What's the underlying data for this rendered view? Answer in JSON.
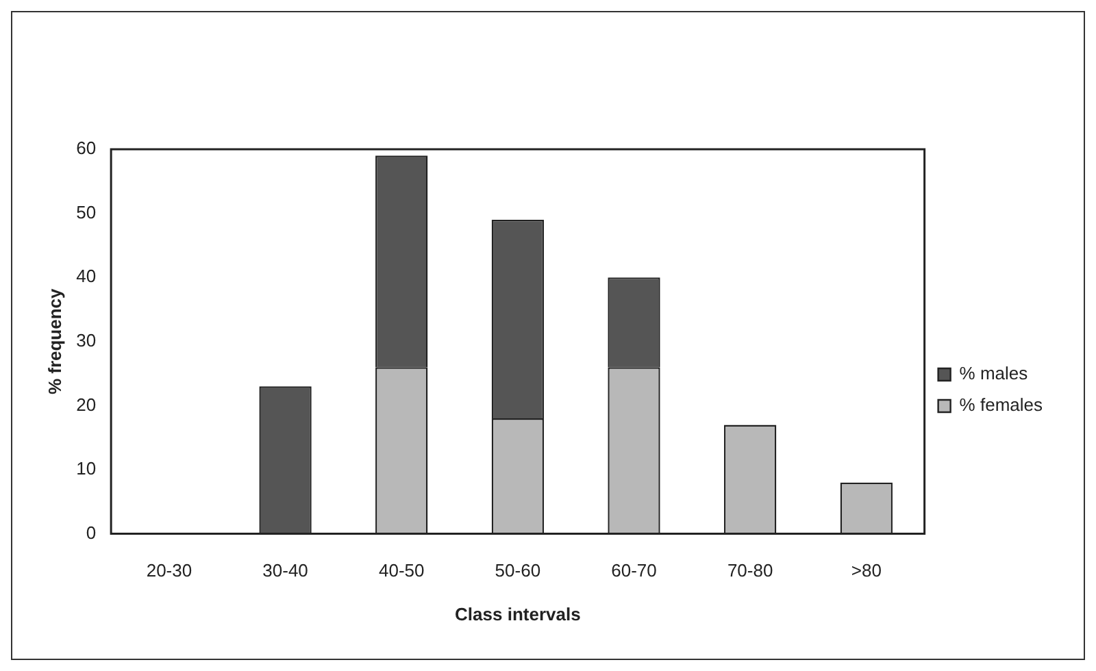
{
  "chart_data": {
    "type": "bar",
    "xlabel": "Class intervals",
    "ylabel": "% frequency",
    "categories": [
      "20-30",
      "30-40",
      "40-50",
      "50-60",
      "60-70",
      "70-80",
      ">80"
    ],
    "stacked": true,
    "legend": "right",
    "grid": false,
    "ylim": [
      0,
      60
    ],
    "yticks": [
      0,
      10,
      20,
      30,
      40,
      50,
      60
    ],
    "series": [
      {
        "name": "% females",
        "color": "#b8b8b8",
        "values": [
          0,
          0,
          26,
          18,
          26,
          17,
          8
        ]
      },
      {
        "name": "% males",
        "color": "#555555",
        "values": [
          0,
          23,
          33,
          31,
          14,
          0,
          0
        ]
      }
    ]
  }
}
